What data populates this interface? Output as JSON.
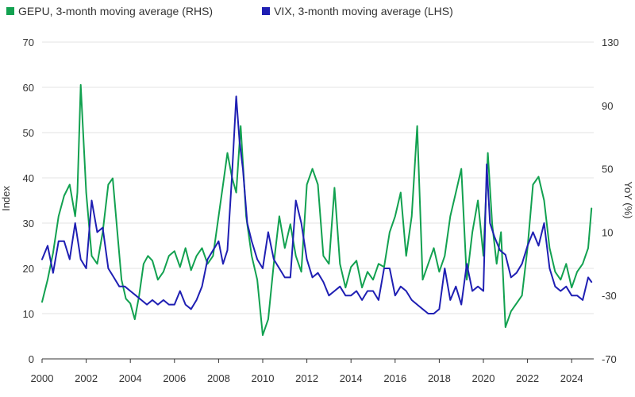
{
  "chart_data": {
    "type": "line",
    "title": "",
    "xlabel": "",
    "ylabel": "Index",
    "y2label": "YoY (%)",
    "xlim": [
      2000,
      2025
    ],
    "ylim": [
      0,
      70
    ],
    "y2lim": [
      -70,
      130
    ],
    "grid": true,
    "legend_position": "top-left",
    "x_ticks": [
      2000,
      2002,
      2004,
      2006,
      2008,
      2010,
      2012,
      2014,
      2016,
      2018,
      2020,
      2022,
      2024
    ],
    "x_tick_labels": [
      "2000",
      "2002",
      "2004",
      "2006",
      "2008",
      "2010",
      "2012",
      "2014",
      "2016",
      "2018",
      "2020",
      "2022",
      "2024"
    ],
    "y_ticks": [
      0,
      10,
      20,
      30,
      40,
      50,
      60,
      70
    ],
    "y_tick_labels": [
      "0",
      "10",
      "20",
      "30",
      "40",
      "50",
      "60",
      "70"
    ],
    "y2_ticks": [
      -70,
      -30,
      10,
      50,
      90,
      130
    ],
    "y2_tick_labels": [
      "-70",
      "-30",
      "10",
      "50",
      "90",
      "130"
    ],
    "series": [
      {
        "name": "GEPU, 3-month moving average (RHS)",
        "axis": "right",
        "color": "#12a150",
        "x": [
          2000.0,
          2000.25,
          2000.5,
          2000.75,
          2001.0,
          2001.25,
          2001.5,
          2001.6,
          2001.75,
          2002.0,
          2002.25,
          2002.5,
          2002.75,
          2003.0,
          2003.2,
          2003.4,
          2003.6,
          2003.8,
          2004.0,
          2004.2,
          2004.4,
          2004.6,
          2004.8,
          2005.0,
          2005.25,
          2005.5,
          2005.75,
          2006.0,
          2006.25,
          2006.5,
          2006.75,
          2007.0,
          2007.25,
          2007.5,
          2007.75,
          2008.0,
          2008.2,
          2008.4,
          2008.6,
          2008.8,
          2009.0,
          2009.25,
          2009.5,
          2009.75,
          2010.0,
          2010.25,
          2010.5,
          2010.75,
          2011.0,
          2011.25,
          2011.5,
          2011.75,
          2012.0,
          2012.25,
          2012.5,
          2012.75,
          2013.0,
          2013.25,
          2013.5,
          2013.75,
          2014.0,
          2014.25,
          2014.5,
          2014.75,
          2015.0,
          2015.25,
          2015.5,
          2015.75,
          2016.0,
          2016.25,
          2016.5,
          2016.75,
          2017.0,
          2017.25,
          2017.5,
          2017.75,
          2018.0,
          2018.25,
          2018.5,
          2018.75,
          2019.0,
          2019.25,
          2019.5,
          2019.75,
          2020.0,
          2020.2,
          2020.4,
          2020.6,
          2020.8,
          2021.0,
          2021.25,
          2021.5,
          2021.75,
          2022.0,
          2022.25,
          2022.5,
          2022.75,
          2023.0,
          2023.25,
          2023.5,
          2023.75,
          2024.0,
          2024.25,
          2024.5,
          2024.75,
          2024.9
        ],
        "values": [
          -34,
          -20,
          -3,
          20,
          33,
          40,
          20,
          35,
          103,
          35,
          -5,
          -10,
          10,
          40,
          44,
          12,
          -20,
          -32,
          -35,
          -45,
          -30,
          -10,
          -5,
          -8,
          -20,
          -15,
          -5,
          -2,
          -12,
          0,
          -14,
          -5,
          0,
          -10,
          -5,
          20,
          40,
          60,
          45,
          35,
          77,
          20,
          -5,
          -20,
          -55,
          -45,
          -10,
          20,
          0,
          15,
          -5,
          -15,
          40,
          50,
          40,
          -5,
          -10,
          38,
          -10,
          -25,
          -12,
          -8,
          -25,
          -15,
          -20,
          -10,
          -12,
          10,
          20,
          35,
          -5,
          20,
          77,
          -20,
          -10,
          0,
          -15,
          -5,
          20,
          35,
          50,
          -20,
          10,
          30,
          -5,
          60,
          15,
          -10,
          10,
          -50,
          -40,
          -35,
          -30,
          0,
          40,
          45,
          30,
          0,
          -15,
          -20,
          -10,
          -25,
          -15,
          -10,
          0,
          25
        ]
      },
      {
        "name": "VIX, 3-month moving average (LHS)",
        "axis": "left",
        "color": "#1f1fb3",
        "x": [
          2000.0,
          2000.25,
          2000.5,
          2000.75,
          2001.0,
          2001.25,
          2001.5,
          2001.75,
          2002.0,
          2002.25,
          2002.5,
          2002.75,
          2003.0,
          2003.25,
          2003.5,
          2003.75,
          2004.0,
          2004.25,
          2004.5,
          2004.75,
          2005.0,
          2005.25,
          2005.5,
          2005.75,
          2006.0,
          2006.25,
          2006.5,
          2006.75,
          2007.0,
          2007.25,
          2007.5,
          2007.75,
          2008.0,
          2008.2,
          2008.4,
          2008.6,
          2008.8,
          2008.95,
          2009.1,
          2009.3,
          2009.5,
          2009.75,
          2010.0,
          2010.25,
          2010.5,
          2010.75,
          2011.0,
          2011.25,
          2011.5,
          2011.75,
          2012.0,
          2012.25,
          2012.5,
          2012.75,
          2013.0,
          2013.25,
          2013.5,
          2013.75,
          2014.0,
          2014.25,
          2014.5,
          2014.75,
          2015.0,
          2015.25,
          2015.5,
          2015.75,
          2016.0,
          2016.25,
          2016.5,
          2016.75,
          2017.0,
          2017.25,
          2017.5,
          2017.75,
          2018.0,
          2018.25,
          2018.5,
          2018.75,
          2019.0,
          2019.25,
          2019.5,
          2019.75,
          2020.0,
          2020.15,
          2020.3,
          2020.5,
          2020.75,
          2021.0,
          2021.25,
          2021.5,
          2021.75,
          2022.0,
          2022.25,
          2022.5,
          2022.75,
          2023.0,
          2023.25,
          2023.5,
          2023.75,
          2024.0,
          2024.25,
          2024.5,
          2024.75,
          2024.9
        ],
        "values": [
          22,
          25,
          19,
          26,
          26,
          22,
          30,
          22,
          20,
          35,
          28,
          29,
          20,
          18,
          16,
          16,
          15,
          14,
          13,
          12,
          13,
          12,
          13,
          12,
          12,
          15,
          12,
          11,
          13,
          16,
          22,
          24,
          26,
          21,
          24,
          40,
          58,
          48,
          42,
          30,
          26,
          22,
          20,
          28,
          22,
          20,
          18,
          18,
          35,
          30,
          22,
          18,
          19,
          17,
          14,
          15,
          16,
          14,
          14,
          15,
          13,
          15,
          15,
          13,
          20,
          20,
          14,
          16,
          15,
          13,
          12,
          11,
          10,
          10,
          11,
          20,
          13,
          16,
          12,
          21,
          15,
          16,
          15,
          43,
          30,
          27,
          24,
          23,
          18,
          19,
          21,
          25,
          28,
          25,
          30,
          20,
          16,
          15,
          16,
          14,
          14,
          13,
          18,
          17
        ]
      }
    ]
  }
}
